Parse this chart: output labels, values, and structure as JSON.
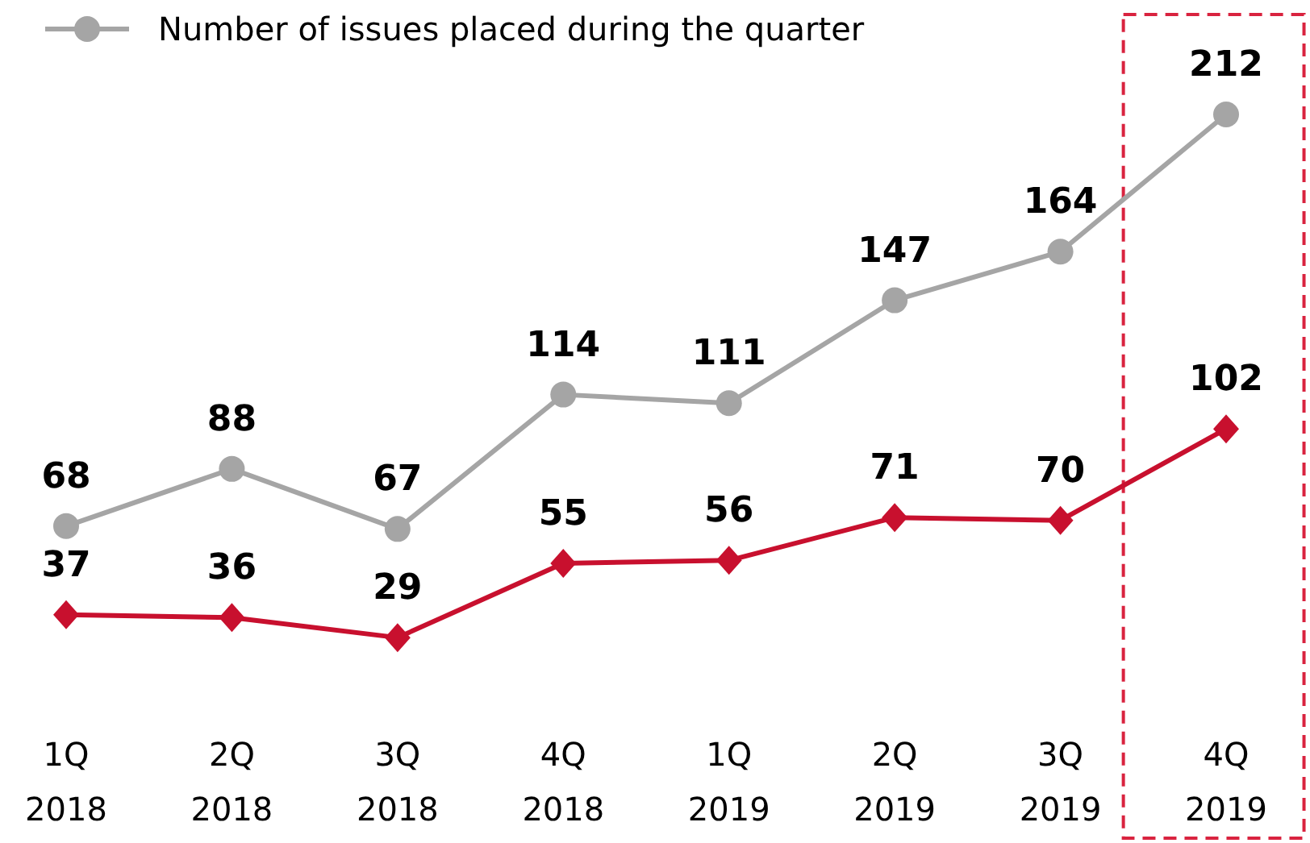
{
  "chart_data": {
    "type": "line",
    "categories": [
      "1Q 2018",
      "2Q 2018",
      "3Q 2018",
      "4Q 2018",
      "1Q 2019",
      "2Q 2019",
      "3Q 2019",
      "4Q 2019"
    ],
    "series": [
      {
        "name": "Number of issues placed during the quarter",
        "color": "#a5a5a5",
        "marker": "circle",
        "values": [
          68,
          88,
          67,
          114,
          111,
          147,
          164,
          212
        ]
      },
      {
        "color": "#c8102e",
        "marker": "diamond",
        "values": [
          37,
          36,
          29,
          55,
          56,
          71,
          70,
          102
        ]
      }
    ],
    "data_labels": true,
    "legend": "top left",
    "grid": false
  }
}
